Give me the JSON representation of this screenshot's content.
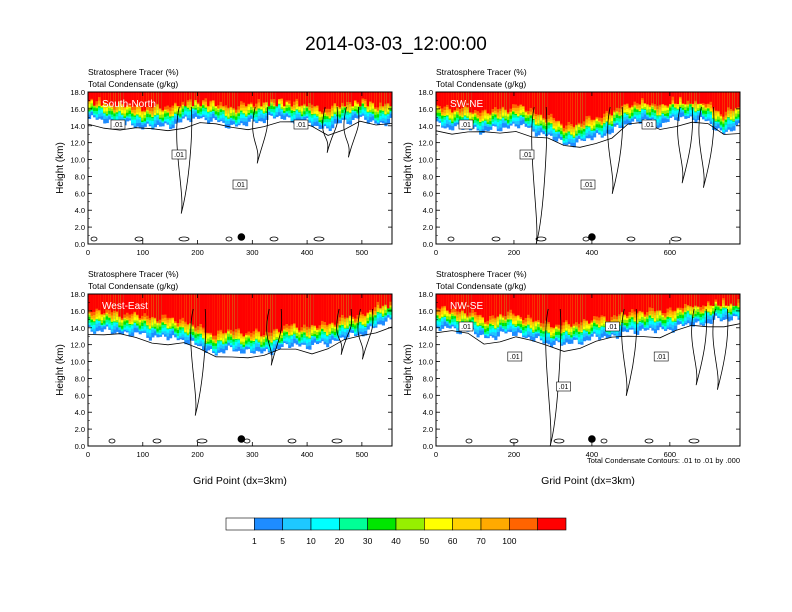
{
  "title": "2014-03-03_12:00:00",
  "contour_note": "Total Condensate Contours: .01 to .01 by .000",
  "colorbar": {
    "colors": [
      "#ffffff",
      "#1e8cff",
      "#1ec8ff",
      "#00ffff",
      "#00ff96",
      "#00e600",
      "#96f000",
      "#ffff00",
      "#ffd200",
      "#ffaa00",
      "#ff6400",
      "#ff0000"
    ],
    "labels": [
      "1",
      "5",
      "10",
      "20",
      "30",
      "40",
      "50",
      "60",
      "70",
      "100"
    ]
  },
  "chart_data": [
    {
      "type": "heatmap",
      "panel_label": "South-North",
      "title_left": "Stratosphere Tracer   (%)",
      "title_left2": "Total Condensate   (g/kg)",
      "ylabel": "Height (km)",
      "xlabel": "",
      "xlim": [
        0,
        555
      ],
      "ylim": [
        0,
        18
      ],
      "xticks": [
        0,
        100,
        200,
        300,
        400,
        500
      ],
      "yticks": [
        "0.0",
        "2.0",
        "4.0",
        "6.0",
        "8.0",
        "10.0",
        "12.0",
        "14.0",
        "16.0",
        "18.0"
      ],
      "contour_labels": [
        ".01",
        ".01",
        ".01",
        ".01"
      ],
      "tracer_base_km": [
        14.8,
        14.6,
        14.2,
        14.0,
        13.8,
        14.0,
        14.6,
        15.0,
        14.4,
        14.0,
        14.2,
        14.8,
        15.0,
        14.6,
        14.2,
        13.6,
        14.4,
        15.0,
        14.2,
        14.6
      ],
      "point_marker_x": 280
    },
    {
      "type": "heatmap",
      "panel_label": "SW-NE",
      "title_left": "Stratosphere Tracer   (%)",
      "title_left2": "Total Condensate   (g/kg)",
      "ylabel": "Height (km)",
      "xlabel": "",
      "xlim": [
        0,
        780
      ],
      "ylim": [
        0,
        18
      ],
      "xticks": [
        0,
        200,
        400,
        600
      ],
      "yticks": [
        "0.0",
        "2.0",
        "4.0",
        "6.0",
        "8.0",
        "10.0",
        "12.0",
        "14.0",
        "16.0",
        "18.0"
      ],
      "contour_labels": [
        ".01",
        ".01",
        ".01",
        ".01"
      ],
      "tracer_base_km": [
        14.0,
        13.8,
        13.6,
        13.4,
        13.6,
        14.2,
        13.4,
        12.8,
        11.8,
        12.0,
        12.8,
        13.2,
        14.4,
        14.6,
        14.2,
        14.8,
        15.0,
        14.4,
        13.2,
        13.8
      ],
      "point_marker_x": 400
    },
    {
      "type": "heatmap",
      "panel_label": "West-East",
      "title_left": "Stratosphere Tracer   (%)",
      "title_left2": "Total Condensate   (g/kg)",
      "ylabel": "Height (km)",
      "xlabel": "Grid Point (dx=3km)",
      "xlim": [
        0,
        555
      ],
      "ylim": [
        0,
        18
      ],
      "xticks": [
        0,
        100,
        200,
        300,
        400,
        500
      ],
      "yticks": [
        "0.0",
        "2.0",
        "4.0",
        "6.0",
        "8.0",
        "10.0",
        "12.0",
        "14.0",
        "16.0",
        "18.0"
      ],
      "contour_labels": [],
      "tracer_base_km": [
        13.8,
        13.6,
        13.4,
        13.2,
        13.0,
        12.8,
        12.6,
        11.6,
        11.0,
        11.4,
        11.2,
        11.0,
        11.6,
        12.0,
        11.8,
        12.2,
        12.8,
        13.2,
        14.0,
        15.0
      ],
      "point_marker_x": 280
    },
    {
      "type": "heatmap",
      "panel_label": "NW-SE",
      "title_left": "Stratosphere Tracer   (%)",
      "title_left2": "Total Condensate   (g/kg)",
      "ylabel": "Height (km)",
      "xlabel": "Grid Point (dx=3km)",
      "xlim": [
        0,
        780
      ],
      "ylim": [
        0,
        18
      ],
      "xticks": [
        0,
        200,
        400,
        600
      ],
      "yticks": [
        "0.0",
        "2.0",
        "4.0",
        "6.0",
        "8.0",
        "10.0",
        "12.0",
        "14.0",
        "16.0",
        "18.0"
      ],
      "contour_labels": [
        ".01",
        ".01",
        ".01",
        ".01",
        ".01"
      ],
      "tracer_base_km": [
        14.0,
        13.8,
        13.6,
        12.8,
        13.2,
        13.4,
        12.6,
        12.2,
        12.0,
        12.4,
        12.8,
        13.0,
        13.4,
        13.8,
        13.6,
        14.0,
        14.4,
        14.6,
        15.0,
        15.2
      ],
      "point_marker_x": 400
    }
  ]
}
